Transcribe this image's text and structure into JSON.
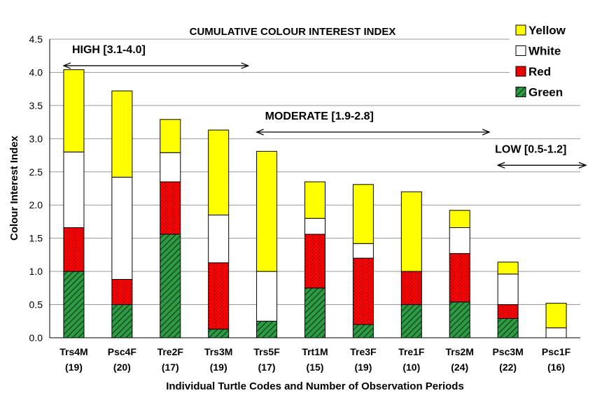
{
  "chart_data": {
    "type": "bar",
    "stacked": true,
    "title": "CUMULATIVE COLOUR INTEREST INDEX",
    "xlabel": "Individual Turtle Codes and Number of Observation Periods",
    "ylabel": "Colour Interest Index",
    "ylim": [
      0,
      4.5
    ],
    "yticks": [
      "0.0",
      "0.5",
      "1.0",
      "1.5",
      "2.0",
      "2.5",
      "3.0",
      "3.5",
      "4.0",
      "4.5"
    ],
    "grid": true,
    "legend_position": "top-right",
    "categories": [
      "Trs4M",
      "Psc4F",
      "Tre2F",
      "Trs3M",
      "Trs5F",
      "Trt1M",
      "Tre3F",
      "Tre1F",
      "Trs2M",
      "Psc3M",
      "Psc1F"
    ],
    "category_counts": [
      "(19)",
      "(20)",
      "(17)",
      "(19)",
      "(17)",
      "(15)",
      "(19)",
      "(10)",
      "(24)",
      "(22)",
      "(16)"
    ],
    "series": [
      {
        "name": "Green",
        "color": "#2e9a44",
        "pattern": "diagonal-hatch",
        "values": [
          1.0,
          0.5,
          1.56,
          0.13,
          0.25,
          0.75,
          0.2,
          0.5,
          0.54,
          0.29,
          0.0
        ]
      },
      {
        "name": "Red",
        "color": "#ff0000",
        "pattern": "dots",
        "values": [
          0.66,
          0.38,
          0.79,
          1.0,
          0.0,
          0.81,
          1.0,
          0.5,
          0.73,
          0.21,
          0.0
        ]
      },
      {
        "name": "White",
        "color": "#ffffff",
        "pattern": "none",
        "values": [
          1.14,
          1.54,
          0.44,
          0.72,
          0.75,
          0.24,
          0.22,
          0.0,
          0.39,
          0.46,
          0.15
        ]
      },
      {
        "name": "Yellow",
        "color": "#ffff00",
        "pattern": "none",
        "values": [
          1.24,
          1.3,
          0.5,
          1.28,
          1.81,
          0.55,
          0.89,
          1.2,
          0.26,
          0.18,
          0.37
        ]
      }
    ],
    "legend_order": [
      "Yellow",
      "White",
      "Red",
      "Green"
    ],
    "annotations": [
      {
        "text": "HIGH [3.1-4.0]",
        "from_category": 0,
        "to_category": 3,
        "y": 4.1
      },
      {
        "text": "MODERATE [1.9-2.8]",
        "from_category": 4,
        "to_category": 8,
        "y": 3.1
      },
      {
        "text": "LOW [0.5-1.2]",
        "from_category": 9,
        "to_category": 10,
        "y": 2.6
      }
    ]
  }
}
